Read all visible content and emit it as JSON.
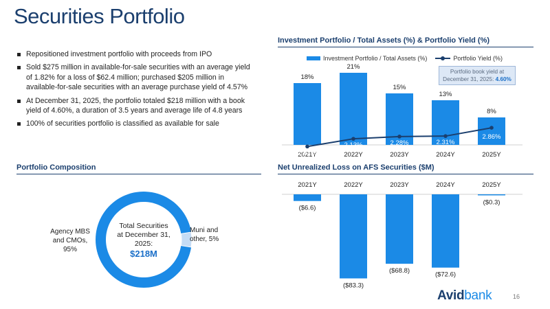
{
  "page": {
    "title": "Securities Portfolio",
    "page_number": "16"
  },
  "bullets": [
    "Repositioned investment portfolio with proceeds from IPO",
    "Sold $275 million in available-for-sale securities with an average yield of 1.82% for a loss of $62.4 million; purchased $205 million in available-for-sale securities with an average purchase yield of 4.57%",
    "At December 31, 2025, the portfolio totaled $218 million with a book yield of 4.60%, a duration of 3.5 years and average life of 4.8 years",
    "100% of securities portfolio is classified as available for sale"
  ],
  "composition": {
    "title": "Portfolio Composition",
    "center_text": "Total Securities at December 31, 2025:",
    "center_value": "$218M",
    "left_label": "Agency MBS and CMOs, 95%",
    "right_label": "Muni and other, 5%",
    "colors": {
      "primary": "#1b8ae6",
      "secondary": "#c5dcf5"
    }
  },
  "logo": {
    "part1": "Avid",
    "part2": "bank"
  },
  "colors": {
    "navy": "#1b3f6e",
    "blue": "#1b8ae6"
  },
  "chart_data": [
    {
      "type": "bar",
      "title": "Investment Portfolio / Total Assets (%) & Portfolio Yield (%)",
      "categories": [
        "2021Y",
        "2022Y",
        "2023Y",
        "2024Y",
        "2025Y"
      ],
      "series": [
        {
          "name": "Investment Portfolio / Total Assets (%)",
          "type": "bar",
          "values": [
            18,
            21,
            15,
            13,
            8
          ],
          "labels": [
            "18%",
            "21%",
            "15%",
            "13%",
            "8%"
          ]
        },
        {
          "name": "Portfolio Yield (%)",
          "type": "line",
          "values": [
            1.62,
            2.13,
            2.28,
            2.31,
            2.86
          ],
          "labels": [
            "1.62%",
            "2.13%",
            "2.28%",
            "2.31%",
            "2.86%"
          ]
        }
      ],
      "annotation": {
        "text": "Portfolio book yield at December 31, 2025:",
        "value": "4.60%"
      },
      "legend": "top"
    },
    {
      "type": "bar",
      "title": "Net Unrealized Loss on AFS Securities ($M)",
      "categories": [
        "2021Y",
        "2022Y",
        "2023Y",
        "2024Y",
        "2025Y"
      ],
      "values": [
        -6.6,
        -83.3,
        -68.8,
        -72.6,
        -0.3
      ],
      "labels": [
        "($6.6)",
        "($83.3)",
        "($68.8)",
        "($72.6)",
        "($0.3)"
      ]
    }
  ]
}
